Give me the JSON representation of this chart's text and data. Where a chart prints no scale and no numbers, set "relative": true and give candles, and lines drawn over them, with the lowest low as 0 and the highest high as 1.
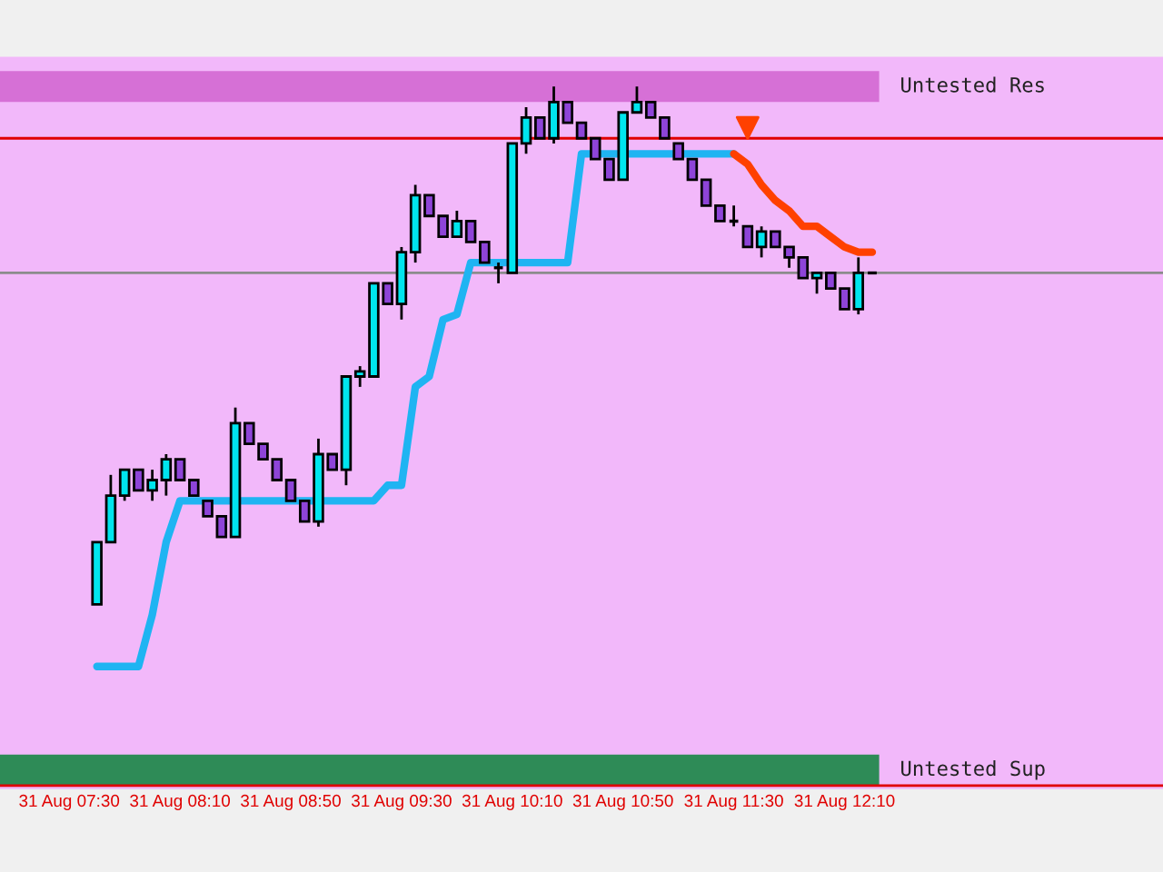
{
  "chart_data": {
    "type": "candlestick",
    "relative": true,
    "categories": [
      "31 Aug 07:30",
      null,
      null,
      null,
      null,
      null,
      null,
      null,
      "31 Aug 08:10",
      null,
      null,
      null,
      null,
      null,
      null,
      null,
      "31 Aug 08:50",
      null,
      null,
      null,
      null,
      null,
      null,
      null,
      "31 Aug 09:30",
      null,
      null,
      null,
      null,
      null,
      null,
      null,
      "31 Aug 10:10",
      null,
      null,
      null,
      null,
      null,
      null,
      null,
      "31 Aug 10:50",
      null,
      null,
      null,
      null,
      null,
      null,
      null,
      "31 Aug 11:30",
      null,
      null,
      null,
      null,
      null,
      null,
      null,
      "31 Aug 12:10",
      null,
      null
    ],
    "ohlc": [
      null,
      null,
      [
        0,
        0.12,
        0,
        0.12
      ],
      [
        0.12,
        0.25,
        0.12,
        0.21
      ],
      [
        0.21,
        0.26,
        0.2,
        0.26
      ],
      [
        0.26,
        0.26,
        0.22,
        0.22
      ],
      [
        0.22,
        0.26,
        0.2,
        0.24
      ],
      [
        0.24,
        0.29,
        0.21,
        0.28
      ],
      [
        0.28,
        0.28,
        0.24,
        0.24
      ],
      [
        0.24,
        0.24,
        0.21,
        0.21
      ],
      [
        0.2,
        0.2,
        0.17,
        0.17
      ],
      [
        0.17,
        0.17,
        0.13,
        0.13
      ],
      [
        0.13,
        0.38,
        0.13,
        0.35
      ],
      [
        0.35,
        0.35,
        0.31,
        0.31
      ],
      [
        0.31,
        0.31,
        0.28,
        0.28
      ],
      [
        0.28,
        0.28,
        0.24,
        0.24
      ],
      [
        0.24,
        0.24,
        0.2,
        0.2
      ],
      [
        0.2,
        0.2,
        0.16,
        0.16
      ],
      [
        0.16,
        0.32,
        0.15,
        0.29
      ],
      [
        0.29,
        0.29,
        0.26,
        0.26
      ],
      [
        0.26,
        0.44,
        0.23,
        0.44
      ],
      [
        0.44,
        0.46,
        0.42,
        0.45
      ],
      [
        0.44,
        0.62,
        0.44,
        0.62
      ],
      [
        0.62,
        0.62,
        0.58,
        0.58
      ],
      [
        0.58,
        0.69,
        0.55,
        0.68
      ],
      [
        0.68,
        0.81,
        0.66,
        0.79
      ],
      [
        0.79,
        0.79,
        0.75,
        0.75
      ],
      [
        0.75,
        0.75,
        0.71,
        0.71
      ],
      [
        0.71,
        0.76,
        0.71,
        0.74
      ],
      [
        0.74,
        0.74,
        0.7,
        0.7
      ],
      [
        0.7,
        0.7,
        0.66,
        0.66
      ],
      [
        0.65,
        0.66,
        0.62,
        0.65
      ],
      [
        0.64,
        0.89,
        0.64,
        0.89
      ],
      [
        0.89,
        0.96,
        0.87,
        0.94
      ],
      [
        0.94,
        0.94,
        0.9,
        0.9
      ],
      [
        0.9,
        1,
        0.89,
        0.97
      ],
      [
        0.97,
        0.97,
        0.93,
        0.93
      ],
      [
        0.93,
        0.93,
        0.9,
        0.9
      ],
      [
        0.9,
        0.9,
        0.86,
        0.86
      ],
      [
        0.86,
        0.86,
        0.82,
        0.82
      ],
      [
        0.82,
        0.95,
        0.82,
        0.95
      ],
      [
        0.95,
        1,
        0.95,
        0.97
      ],
      [
        0.97,
        0.97,
        0.94,
        0.94
      ],
      [
        0.94,
        0.94,
        0.9,
        0.9
      ],
      [
        0.89,
        0.89,
        0.86,
        0.86
      ],
      [
        0.86,
        0.86,
        0.82,
        0.82
      ],
      [
        0.82,
        0.82,
        0.77,
        0.77
      ],
      [
        0.77,
        0.77,
        0.74,
        0.74
      ],
      [
        0.74,
        0.77,
        0.73,
        0.74
      ],
      [
        0.73,
        0.73,
        0.69,
        0.69
      ],
      [
        0.69,
        0.73,
        0.67,
        0.72
      ],
      [
        0.72,
        0.72,
        0.69,
        0.69
      ],
      [
        0.69,
        0.69,
        0.65,
        0.67
      ],
      [
        0.67,
        0.67,
        0.63,
        0.63
      ],
      [
        0.63,
        0.64,
        0.6,
        0.64
      ],
      [
        0.64,
        0.64,
        0.61,
        0.61
      ],
      [
        0.61,
        0.61,
        0.57,
        0.57
      ],
      [
        0.57,
        0.67,
        0.56,
        0.64
      ],
      [
        0.64,
        0.64,
        0.64,
        0.64
      ]
    ],
    "colors": [
      null,
      null,
      "#00e5ee",
      "#00e5ee",
      "#00e5ee",
      "#8e44d8",
      "#00e5ee",
      "#00e5ee",
      "#8e44d8",
      "#8e44d8",
      "#8e44d8",
      "#8e44d8",
      "#00e5ee",
      "#8e44d8",
      "#8e44d8",
      "#8e44d8",
      "#8e44d8",
      "#8e44d8",
      "#00e5ee",
      "#8e44d8",
      "#00e5ee",
      "#00e5ee",
      "#00e5ee",
      "#8e44d8",
      "#00e5ee",
      "#00e5ee",
      "#8e44d8",
      "#8e44d8",
      "#00e5ee",
      "#8e44d8",
      "#8e44d8",
      "#000000",
      "#00e5ee",
      "#00e5ee",
      "#8e44d8",
      "#00e5ee",
      "#8e44d8",
      "#8e44d8",
      "#8e44d8",
      "#8e44d8",
      "#00e5ee",
      "#00e5ee",
      "#8e44d8",
      "#8e44d8",
      "#8e44d8",
      "#8e44d8",
      "#8e44d8",
      "#8e44d8",
      "#000000",
      "#8e44d8",
      "#00e5ee",
      "#8e44d8",
      "#8e44d8",
      "#8e44d8",
      "#00e5ee",
      "#8e44d8",
      "#8e44d8",
      "#00e5ee",
      "#000000"
    ],
    "series": [
      {
        "type": "line",
        "color": "#1fb4f2",
        "values": [
          null,
          null,
          -0.12,
          -0.12,
          -0.12,
          -0.12,
          -0.02,
          0.12,
          0.2,
          0.2,
          0.2,
          0.2,
          0.2,
          0.2,
          0.2,
          0.2,
          0.2,
          0.2,
          0.2,
          0.2,
          0.2,
          0.2,
          0.2,
          0.23,
          0.23,
          0.42,
          0.44,
          0.55,
          0.56,
          0.66,
          0.66,
          0.66,
          0.66,
          0.66,
          0.66,
          0.66,
          0.66,
          0.87,
          0.87,
          0.87,
          0.87,
          0.87,
          0.87,
          0.87,
          0.87,
          0.87,
          0.87,
          0.87,
          0.87,
          null,
          null,
          null,
          null,
          null,
          null,
          null,
          null,
          null,
          null
        ]
      },
      {
        "type": "line",
        "color": "#ff4000",
        "values": [
          null,
          null,
          null,
          null,
          null,
          null,
          null,
          null,
          null,
          null,
          null,
          null,
          null,
          null,
          null,
          null,
          null,
          null,
          null,
          null,
          null,
          null,
          null,
          null,
          null,
          null,
          null,
          null,
          null,
          null,
          null,
          null,
          null,
          null,
          null,
          null,
          null,
          null,
          null,
          null,
          null,
          null,
          null,
          null,
          null,
          null,
          null,
          null,
          0.87,
          0.85,
          0.81,
          0.78,
          0.76,
          0.73,
          0.73,
          0.71,
          0.69,
          0.68,
          0.68
        ]
      },
      {
        "type": "scatter",
        "color": "#ff4000",
        "marker": "triangle",
        "values": [
          null,
          null,
          null,
          null,
          null,
          null,
          null,
          null,
          null,
          null,
          null,
          null,
          null,
          null,
          null,
          null,
          null,
          null,
          null,
          null,
          null,
          null,
          null,
          null,
          null,
          null,
          null,
          null,
          null,
          null,
          null,
          null,
          null,
          null,
          null,
          null,
          null,
          null,
          null,
          null,
          null,
          null,
          null,
          null,
          null,
          null,
          null,
          null,
          null,
          0.92,
          null,
          null,
          null,
          null,
          null,
          null,
          null,
          null,
          null
        ]
      }
    ],
    "ref_lines": [
      {
        "axis": "y",
        "value": 0.9,
        "color": "#e00000"
      },
      {
        "axis": "y",
        "value": 0.64,
        "color": "#8c8c8c"
      },
      {
        "axis": "y",
        "value": -0.35,
        "color": "#e00000"
      }
    ],
    "bands": [
      {
        "axis": "y",
        "from": 0.97,
        "to": 1.03,
        "label": "Untested Res",
        "color": "#d670d6"
      },
      {
        "axis": "y",
        "from": -0.35,
        "to": -0.29,
        "label": "Untested Sup",
        "color": "#2e8b57"
      }
    ]
  }
}
